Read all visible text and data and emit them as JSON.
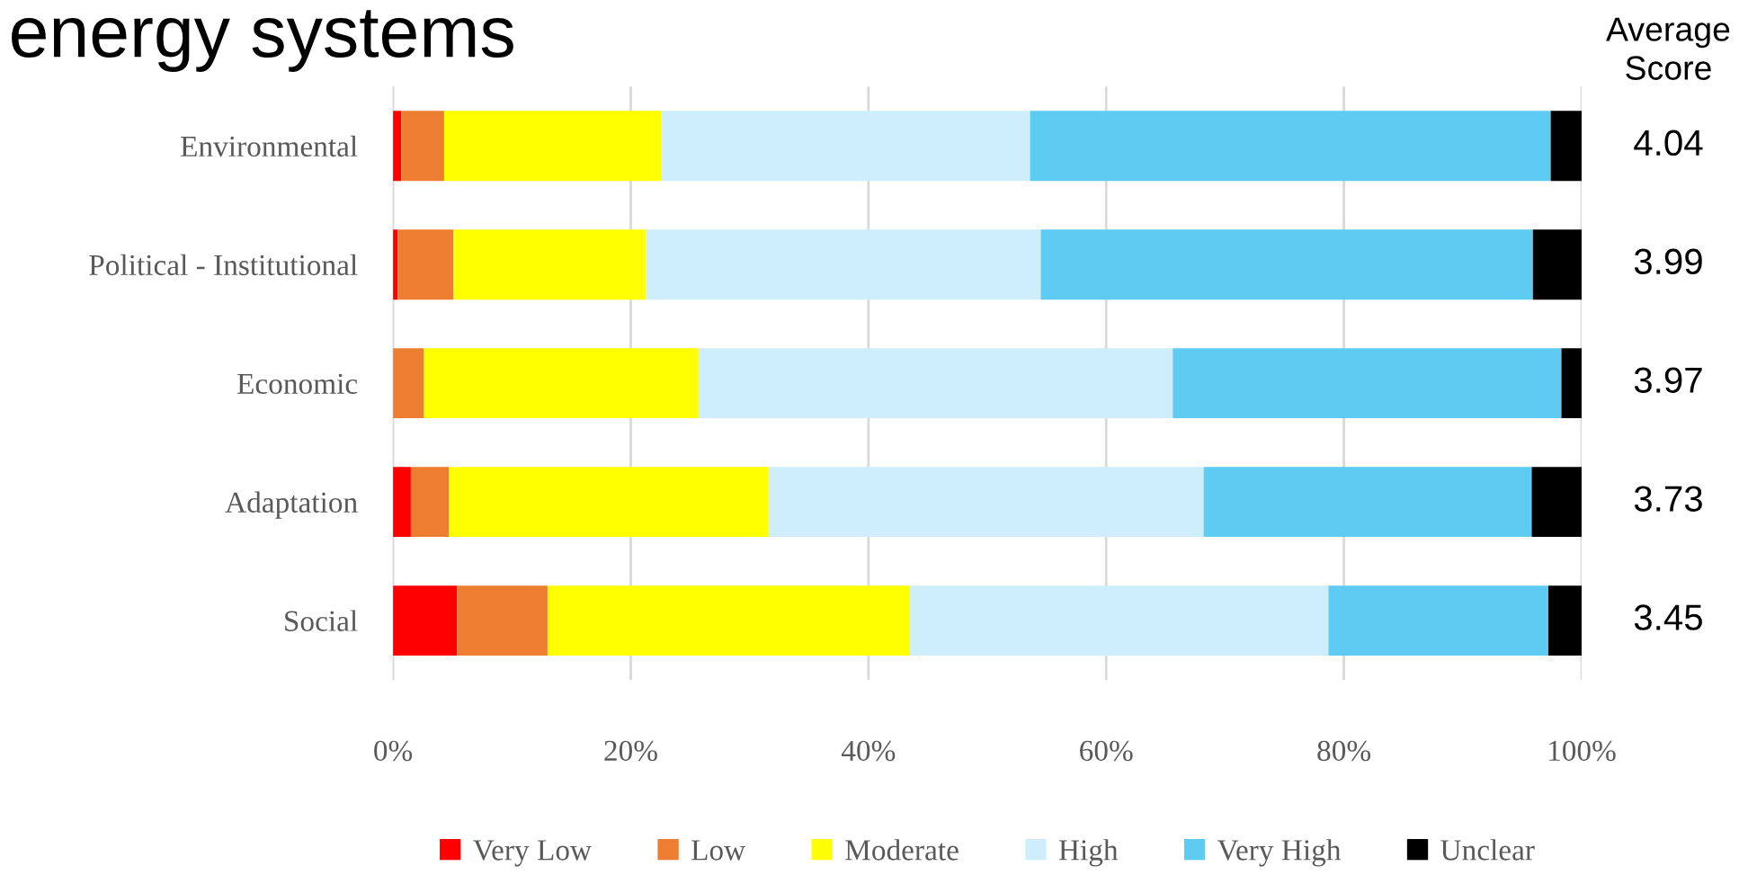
{
  "chart_data": {
    "type": "bar",
    "orientation": "horizontal",
    "stacked": true,
    "title": "energy systems",
    "categories": [
      "Environmental",
      "Political - Institutional",
      "Economic",
      "Adaptation",
      "Social"
    ],
    "series": [
      {
        "name": "Very Low",
        "color": "#ff0000",
        "values": [
          0.7,
          0.4,
          0,
          1.5,
          5.4
        ]
      },
      {
        "name": "Low",
        "color": "#ed7d31",
        "values": [
          3.6,
          4.7,
          2.6,
          3.2,
          7.6
        ]
      },
      {
        "name": "Moderate",
        "color": "#ffff00",
        "values": [
          18.3,
          16.2,
          23.1,
          26.9,
          30.5
        ]
      },
      {
        "name": "High",
        "color": "#cdeefa",
        "values": [
          31.0,
          33.2,
          39.9,
          36.6,
          35.2
        ]
      },
      {
        "name": "Very High",
        "color": "#5ecbf3",
        "values": [
          43.8,
          41.4,
          32.7,
          27.6,
          18.5
        ]
      },
      {
        "name": "Unclear",
        "color": "#000000",
        "values": [
          2.6,
          4.1,
          1.7,
          4.2,
          2.8
        ]
      }
    ],
    "xlim": [
      0,
      100
    ],
    "xticks": [
      {
        "value": 0,
        "label": "0%"
      },
      {
        "value": 20,
        "label": "20%"
      },
      {
        "value": 40,
        "label": "40%"
      },
      {
        "value": 60,
        "label": "60%"
      },
      {
        "value": 80,
        "label": "80%"
      },
      {
        "value": 100,
        "label": "100%"
      }
    ],
    "grid": "x",
    "legend": "bottom",
    "annotations": [
      "Average\nScore",
      "4.04",
      "3.99",
      "3.97",
      "3.73",
      "3.45"
    ]
  }
}
